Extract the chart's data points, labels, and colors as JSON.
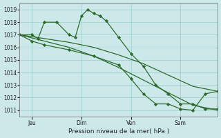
{
  "bg_color": "#cce8e8",
  "grid_color": "#99cccc",
  "line_color": "#2d6b2d",
  "xlabel": "Pression niveau de la mer( hPa )",
  "ylim": [
    1010.5,
    1019.5
  ],
  "yticks": [
    1011,
    1012,
    1013,
    1014,
    1015,
    1016,
    1017,
    1018,
    1019
  ],
  "xlim": [
    0,
    96
  ],
  "xtick_positions": [
    6,
    30,
    54,
    78
  ],
  "xtick_labels": [
    "Jeu",
    "Dim",
    "Ven",
    "Sam"
  ],
  "s1_x": [
    0,
    6,
    9,
    12,
    18,
    24,
    27,
    30,
    33,
    36,
    39,
    42,
    48,
    54,
    60,
    66,
    72,
    78,
    84,
    90,
    96
  ],
  "s1_y": [
    1017.0,
    1017.0,
    1016.7,
    1018.0,
    1018.0,
    1017.0,
    1016.8,
    1018.5,
    1019.0,
    1018.7,
    1018.5,
    1018.1,
    1016.8,
    1015.5,
    1014.5,
    1013.0,
    1012.3,
    1011.5,
    1011.5,
    1011.1,
    1011.1
  ],
  "s1_markers_x": [
    0,
    6,
    9,
    12,
    18,
    24,
    27,
    30,
    33,
    36,
    39,
    42,
    48,
    54,
    60,
    66,
    72,
    78,
    84,
    90,
    96
  ],
  "s2_x": [
    0,
    12,
    24,
    36,
    48,
    60,
    72,
    84,
    96
  ],
  "s2_y": [
    1017.0,
    1016.7,
    1016.4,
    1016.0,
    1015.4,
    1014.7,
    1013.8,
    1012.9,
    1012.5
  ],
  "s3_x": [
    0,
    12,
    24,
    36,
    48,
    60,
    72,
    84,
    96
  ],
  "s3_y": [
    1017.0,
    1016.5,
    1016.0,
    1015.3,
    1014.4,
    1013.4,
    1012.4,
    1011.4,
    1011.0
  ],
  "s4_x": [
    0,
    6,
    12,
    24,
    36,
    48,
    54,
    60,
    66,
    72,
    78,
    84,
    90,
    96
  ],
  "s4_y": [
    1017.0,
    1016.5,
    1016.2,
    1015.8,
    1015.3,
    1014.6,
    1013.5,
    1012.3,
    1011.5,
    1011.5,
    1011.1,
    1011.0,
    1012.3,
    1012.5
  ]
}
